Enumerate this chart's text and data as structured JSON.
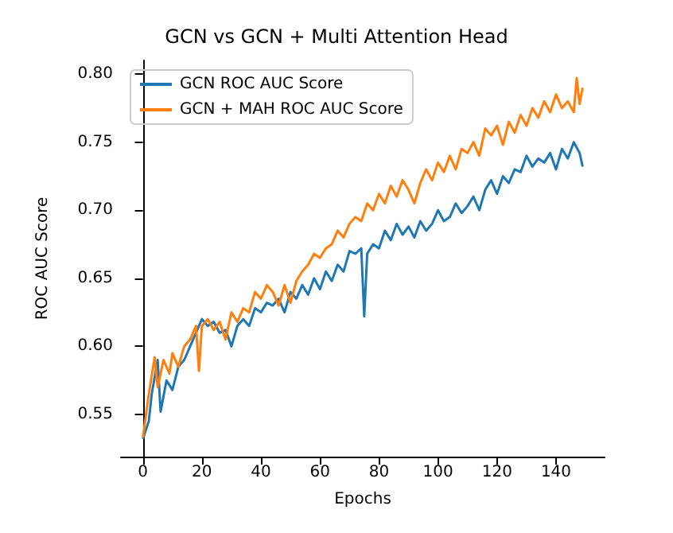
{
  "chart_data": {
    "type": "line",
    "title": "GCN vs GCN + Multi Attention Head",
    "xlabel": "Epochs",
    "ylabel": "ROC AUC Score",
    "xlim": [
      -7.45,
      156.45
    ],
    "xticks": [
      0,
      20,
      40,
      60,
      80,
      100,
      120,
      140
    ],
    "ylim": [
      0.519,
      0.81
    ],
    "yticks": [
      {
        "value": 0.55,
        "label": "0.55"
      },
      {
        "value": 0.6,
        "label": "0.60"
      },
      {
        "value": 0.65,
        "label": "0.65"
      },
      {
        "value": 0.7,
        "label": "0.70"
      },
      {
        "value": 0.75,
        "label": "0.75"
      },
      {
        "value": 0.8,
        "label": "0.80"
      }
    ],
    "grid": false,
    "legend": "top left",
    "marker": "none",
    "line_style": "solid",
    "series": [
      {
        "name": "GCN ROC AUC Score",
        "color": "#1f77b4",
        "x": [
          0,
          2,
          3,
          5,
          6,
          8,
          10,
          12,
          14,
          16,
          18,
          20,
          22,
          24,
          26,
          28,
          30,
          32,
          34,
          36,
          38,
          40,
          42,
          44,
          46,
          48,
          50,
          52,
          54,
          56,
          58,
          60,
          62,
          64,
          66,
          68,
          70,
          72,
          74,
          75,
          76,
          78,
          80,
          82,
          84,
          86,
          88,
          90,
          92,
          94,
          96,
          98,
          100,
          102,
          104,
          106,
          108,
          110,
          112,
          114,
          116,
          118,
          120,
          122,
          124,
          126,
          128,
          130,
          132,
          134,
          136,
          138,
          140,
          142,
          144,
          146,
          148,
          149
        ],
        "values": [
          0.532,
          0.545,
          0.565,
          0.59,
          0.552,
          0.575,
          0.568,
          0.585,
          0.59,
          0.6,
          0.61,
          0.62,
          0.615,
          0.618,
          0.61,
          0.612,
          0.6,
          0.615,
          0.62,
          0.615,
          0.628,
          0.625,
          0.632,
          0.63,
          0.635,
          0.625,
          0.64,
          0.635,
          0.645,
          0.638,
          0.65,
          0.642,
          0.655,
          0.648,
          0.66,
          0.655,
          0.67,
          0.668,
          0.672,
          0.622,
          0.668,
          0.675,
          0.672,
          0.685,
          0.678,
          0.69,
          0.682,
          0.688,
          0.68,
          0.692,
          0.685,
          0.69,
          0.7,
          0.692,
          0.695,
          0.705,
          0.698,
          0.703,
          0.71,
          0.7,
          0.715,
          0.722,
          0.712,
          0.725,
          0.72,
          0.73,
          0.728,
          0.74,
          0.732,
          0.738,
          0.735,
          0.742,
          0.73,
          0.745,
          0.738,
          0.75,
          0.742,
          0.732
        ]
      },
      {
        "name": "GCN + MAH ROC AUC Score",
        "color": "#ff7f0e",
        "x": [
          0,
          2,
          4,
          5,
          7,
          9,
          10,
          12,
          14,
          16,
          18,
          19,
          20,
          22,
          24,
          26,
          28,
          30,
          32,
          34,
          36,
          38,
          40,
          42,
          44,
          46,
          48,
          50,
          52,
          54,
          56,
          58,
          60,
          62,
          64,
          66,
          68,
          70,
          72,
          74,
          76,
          78,
          80,
          82,
          84,
          86,
          88,
          90,
          92,
          94,
          96,
          98,
          100,
          102,
          104,
          106,
          108,
          110,
          112,
          114,
          116,
          118,
          120,
          122,
          124,
          126,
          128,
          130,
          132,
          134,
          136,
          138,
          140,
          142,
          144,
          146,
          147,
          148,
          149
        ],
        "values": [
          0.533,
          0.565,
          0.592,
          0.57,
          0.59,
          0.58,
          0.595,
          0.585,
          0.6,
          0.605,
          0.615,
          0.582,
          0.615,
          0.62,
          0.612,
          0.618,
          0.605,
          0.625,
          0.618,
          0.628,
          0.625,
          0.64,
          0.635,
          0.645,
          0.64,
          0.63,
          0.645,
          0.632,
          0.648,
          0.655,
          0.66,
          0.668,
          0.665,
          0.672,
          0.675,
          0.685,
          0.68,
          0.69,
          0.695,
          0.692,
          0.705,
          0.7,
          0.712,
          0.705,
          0.718,
          0.71,
          0.722,
          0.715,
          0.705,
          0.72,
          0.73,
          0.722,
          0.735,
          0.728,
          0.74,
          0.73,
          0.745,
          0.742,
          0.75,
          0.74,
          0.76,
          0.755,
          0.762,
          0.748,
          0.765,
          0.757,
          0.77,
          0.762,
          0.775,
          0.768,
          0.78,
          0.772,
          0.785,
          0.775,
          0.78,
          0.772,
          0.797,
          0.778,
          0.79
        ]
      }
    ]
  }
}
